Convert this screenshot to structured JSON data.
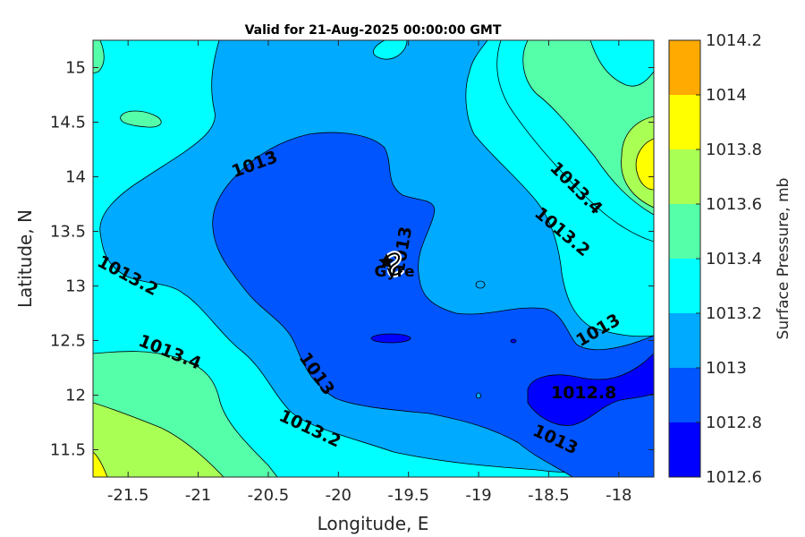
{
  "chart_data": {
    "type": "contour",
    "title": "Valid for 21-Aug-2025 00:00:00 GMT",
    "xlabel": "Longitude, E",
    "ylabel": "Latitude, N",
    "xlim": [
      -21.75,
      -17.75
    ],
    "ylim": [
      11.25,
      15.25
    ],
    "x_ticks": [
      -21.5,
      -21,
      -20.5,
      -20,
      -19.5,
      -19,
      -18.5,
      -18
    ],
    "x_tick_labels": [
      "-21.5",
      "-21",
      "-20.5",
      "-20",
      "-19.5",
      "-19",
      "-18.5",
      "-18"
    ],
    "y_ticks": [
      11.5,
      12,
      12.5,
      13,
      13.5,
      14,
      14.5,
      15
    ],
    "y_tick_labels": [
      "11.5",
      "12",
      "12.5",
      "13",
      "13.5",
      "14",
      "14.5",
      "15"
    ],
    "colorbar": {
      "label": "Surface Pressure, mb",
      "levels": [
        1012.6,
        1012.8,
        1013,
        1013.2,
        1013.4,
        1013.6,
        1013.8,
        1014,
        1014.2
      ],
      "level_labels": [
        "1012.6",
        "1012.8",
        "1013",
        "1013.2",
        "1013.4",
        "1013.6",
        "1013.8",
        "1014",
        "1014.2"
      ],
      "colors": [
        "#0000ff",
        "#0055ff",
        "#00aaff",
        "#00ffff",
        "#55ffaa",
        "#aaff55",
        "#ffff00",
        "#ffaa00",
        "#ff5500"
      ]
    },
    "contour_labels": [
      {
        "text": "1013",
        "x": -20.6,
        "y": 14.12,
        "angle": -20
      },
      {
        "text": "1013.2",
        "x": -21.5,
        "y": 13.1,
        "angle": 28
      },
      {
        "text": "1013.4",
        "x": -21.2,
        "y": 12.4,
        "angle": 22
      },
      {
        "text": "1013",
        "x": -20.15,
        "y": 12.2,
        "angle": 55
      },
      {
        "text": "1013.2",
        "x": -20.2,
        "y": 11.7,
        "angle": 25
      },
      {
        "text": "1013",
        "x": -19.55,
        "y": 13.33,
        "angle": -80
      },
      {
        "text": "1013.4",
        "x": -18.3,
        "y": 13.9,
        "angle": 45
      },
      {
        "text": "1013.2",
        "x": -18.4,
        "y": 13.5,
        "angle": 40
      },
      {
        "text": "1013",
        "x": -18.15,
        "y": 12.6,
        "angle": -30
      },
      {
        "text": "1012.8",
        "x": -18.25,
        "y": 12.03,
        "angle": 0
      },
      {
        "text": "1013",
        "x": -18.45,
        "y": 11.6,
        "angle": 25
      }
    ],
    "storm": {
      "label": "Gyre",
      "x": -19.6,
      "y": 13.2
    }
  }
}
